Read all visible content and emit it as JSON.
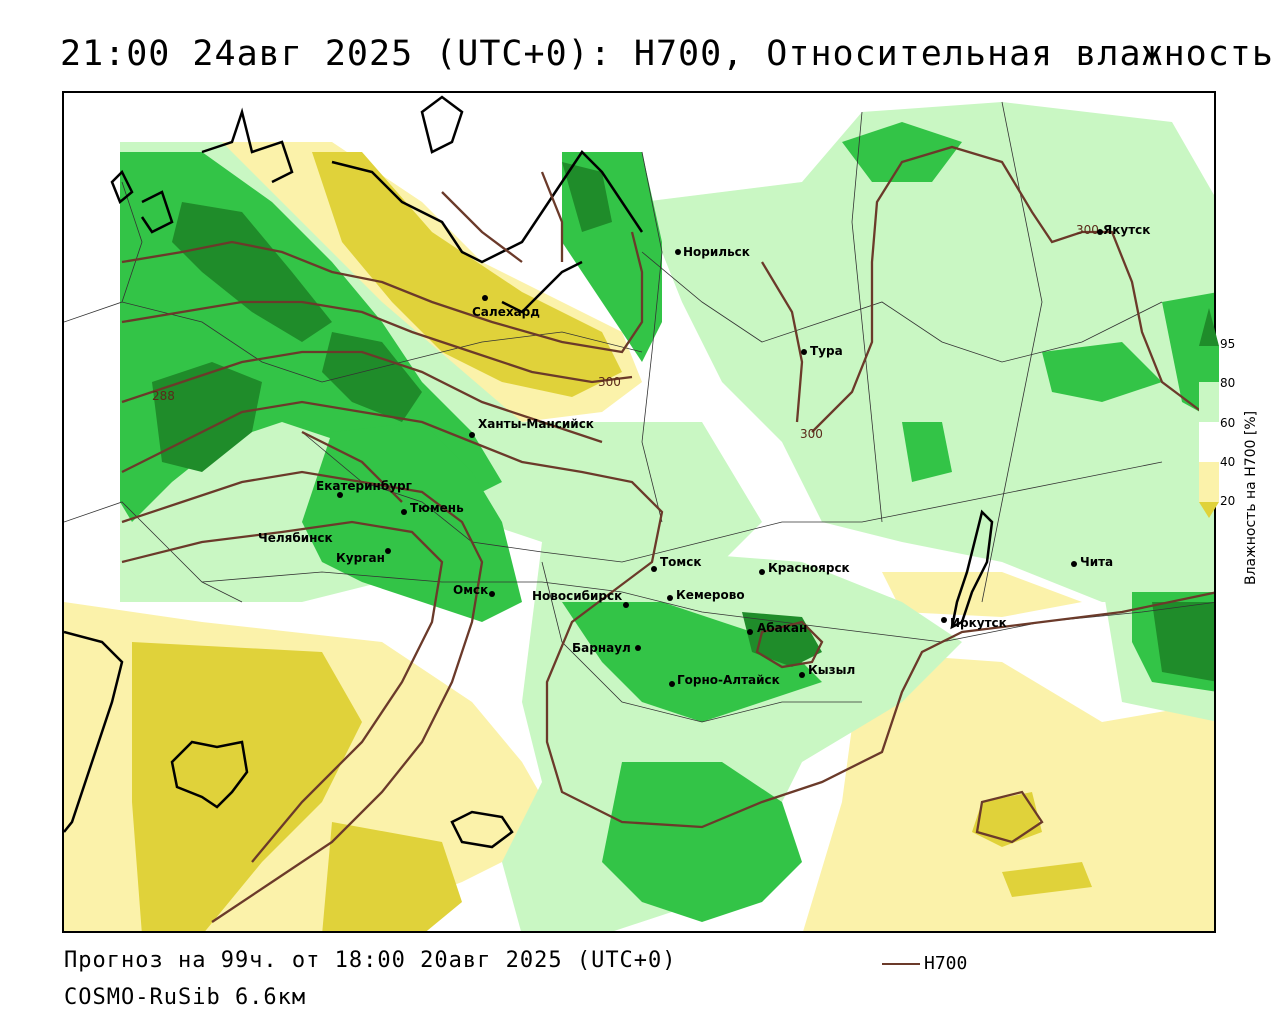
{
  "header": {
    "title": "21:00 24авг 2025 (UTC+0): H700, Относительная влажность"
  },
  "footer": {
    "forecast": "Прогноз на 99ч. от 18:00 20авг 2025 (UTC+0)",
    "model": "COSMO-RuSib 6.6км",
    "line_legend_label": "H700"
  },
  "legend": {
    "title": "Влажность на H700 [%]",
    "ticks": [
      "95",
      "80",
      "60",
      "40",
      "20"
    ],
    "colors": {
      "95": "#1f8c2a",
      "80": "#33c447",
      "60": "#c9f7c3",
      "40": "#ffffff",
      "20": "#fbf2aa",
      "0": "#e0d23a"
    }
  },
  "contours": {
    "color": "#6b3a2a",
    "labels": [
      "288",
      "300",
      "300",
      "300"
    ]
  },
  "cities": [
    {
      "name": "Норильск"
    },
    {
      "name": "Якутск"
    },
    {
      "name": "Салехард"
    },
    {
      "name": "Тура"
    },
    {
      "name": "Ханты-Мансийск"
    },
    {
      "name": "Екатеринбург"
    },
    {
      "name": "Тюмень"
    },
    {
      "name": "Челябинск"
    },
    {
      "name": "Курган"
    },
    {
      "name": "Омск"
    },
    {
      "name": "Новосибирск"
    },
    {
      "name": "Томск"
    },
    {
      "name": "Красноярск"
    },
    {
      "name": "Кемерово"
    },
    {
      "name": "Барнаул"
    },
    {
      "name": "Абакан"
    },
    {
      "name": "Горно-Алтайск"
    },
    {
      "name": "Кызыл"
    },
    {
      "name": "Иркутск"
    },
    {
      "name": "Чита"
    }
  ]
}
